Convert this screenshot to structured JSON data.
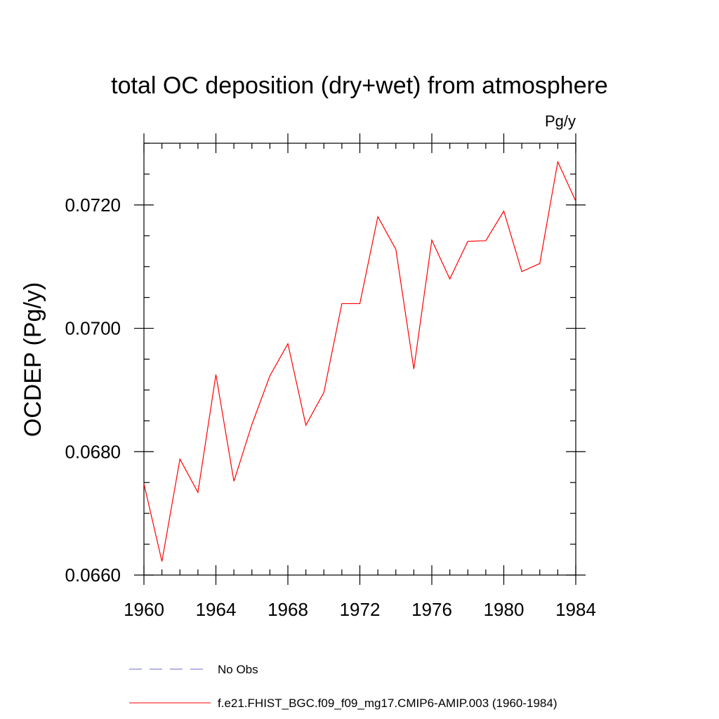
{
  "chart_data": {
    "type": "line",
    "title": "total OC deposition (dry+wet) from atmosphere",
    "units_label": "Pg/y",
    "xlabel": "",
    "ylabel": "OCDEP  (Pg/y)",
    "xlim": [
      1960,
      1984
    ],
    "ylim": [
      0.066,
      0.073
    ],
    "x_ticks": [
      1960,
      1964,
      1968,
      1972,
      1976,
      1980,
      1984
    ],
    "x_tick_labels": [
      "1960",
      "1964",
      "1968",
      "1972",
      "1976",
      "1980",
      "1984"
    ],
    "y_ticks": [
      0.066,
      0.068,
      0.07,
      0.072
    ],
    "y_tick_labels": [
      "0.0660",
      "0.0680",
      "0.0700",
      "0.0720"
    ],
    "x_minor_step": 1,
    "y_minor_step": 0.0005,
    "grid": false,
    "legend_position": "bottom-left",
    "series": [
      {
        "name": "f.e21.FHIST_BGC.f09_f09_mg17.CMIP6-AMIP.003 (1960-1984)",
        "color": "#ff0000",
        "line_style": "solid",
        "x": [
          1960,
          1961,
          1962,
          1963,
          1964,
          1965,
          1966,
          1967,
          1968,
          1969,
          1970,
          1971,
          1972,
          1973,
          1974,
          1975,
          1976,
          1977,
          1978,
          1979,
          1980,
          1981,
          1982,
          1983,
          1984
        ],
        "values": [
          0.06748,
          0.06622,
          0.06788,
          0.06734,
          0.06925,
          0.06752,
          0.06844,
          0.06923,
          0.06975,
          0.06843,
          0.06896,
          0.0704,
          0.0704,
          0.07181,
          0.07128,
          0.06934,
          0.07143,
          0.0708,
          0.07141,
          0.07142,
          0.0719,
          0.07092,
          0.07105,
          0.0727,
          0.07206
        ]
      }
    ],
    "legend": [
      {
        "label": "No Obs",
        "color": "#6a6ad0",
        "line_style": "dashed"
      },
      {
        "label": "f.e21.FHIST_BGC.f09_f09_mg17.CMIP6-AMIP.003 (1960-1984)",
        "color": "#ff0000",
        "line_style": "solid"
      }
    ]
  }
}
